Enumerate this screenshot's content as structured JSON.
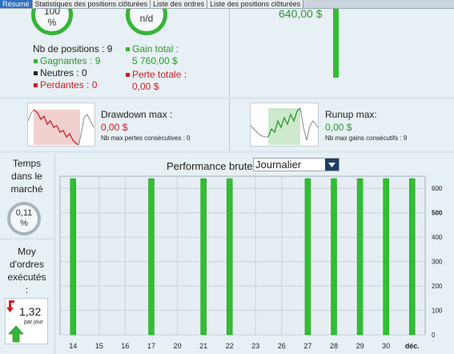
{
  "tabs": [
    {
      "label": "Résumé",
      "active": true
    },
    {
      "label": "Statistiques des positions clôturées",
      "active": false
    },
    {
      "label": "Liste des ordres",
      "active": false
    },
    {
      "label": "Liste des positions clôturées",
      "active": false
    }
  ],
  "summary": {
    "win_ratio": "100\n%",
    "win_ratio_fill": 1.0,
    "profit_factor": "n/d",
    "nb_positions": "Nb de positions : 9",
    "gagnantes": "Gagnantes : 9",
    "neutres": "Neutres : 0",
    "perdantes": "Perdantes : 0",
    "gain_total_label": "Gain total :",
    "gain_total_value": "5 760,00 $",
    "perte_totale_label": "Perte totale :",
    "perte_totale_value": "0,00 $",
    "top_right_value": "640,00 $",
    "top_right_bar_fill": 1.0
  },
  "drawdown": {
    "title": "Drawdown max :",
    "value": "0,00 $",
    "sub": "Nb max pertes consécutives : 0"
  },
  "runup": {
    "title": "Runup max:",
    "value": "0,00 $",
    "sub": "Nb max gains consécutifs : 9"
  },
  "time_in_market": {
    "label": "Temps\ndans le\nmarché",
    "value": "0,11\n%"
  },
  "avg_orders": {
    "label": "Moy\nd'ordres\nexécutés\n:",
    "value": "1,32",
    "unit": "par jour"
  },
  "performance": {
    "title": "Performance brute",
    "period": "Journalier"
  },
  "colors": {
    "accent_green": "#36b437",
    "bar_green": "#2fc02f",
    "loss_red": "#cc2020",
    "tab_active": "#2f6fbe"
  },
  "chart_data": {
    "type": "bar",
    "categories": [
      "14",
      "15",
      "16",
      "17",
      "20",
      "21",
      "22",
      "23",
      "26",
      "27",
      "28",
      "29",
      "30",
      "déc."
    ],
    "values": [
      640,
      0,
      0,
      640,
      0,
      640,
      640,
      0,
      0,
      640,
      640,
      640,
      640,
      640
    ],
    "yticks": [
      "0",
      "100",
      "200",
      "300",
      "400",
      "500",
      "600"
    ],
    "ylim": [
      0,
      650
    ],
    "grid": true
  }
}
